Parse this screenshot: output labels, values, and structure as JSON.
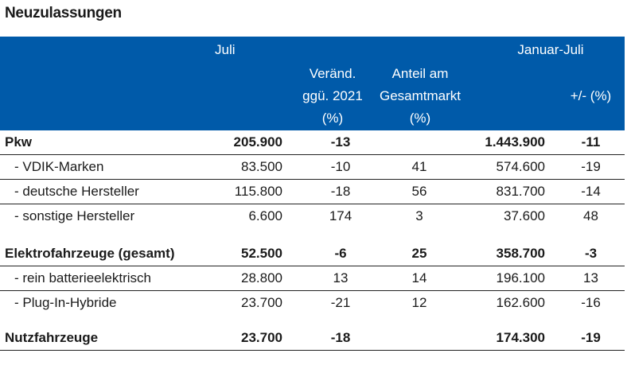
{
  "title": "Neuzulassungen",
  "header": {
    "juli": "Juli",
    "januar_juli": "Januar-Juli",
    "veraend": [
      "Veränd.",
      "ggü. 2021",
      "(%)"
    ],
    "anteil": [
      "Anteil am",
      "Gesamtmarkt",
      "(%)"
    ],
    "plusminus": "+/- (%)"
  },
  "rows": [
    {
      "label": "Pkw",
      "juli": "205.900",
      "ver": "-13",
      "ant": "",
      "jan": "1.443.900",
      "pm": "-11"
    },
    {
      "label": "- VDIK-Marken",
      "juli": "83.500",
      "ver": "-10",
      "ant": "41",
      "jan": "574.600",
      "pm": "-19"
    },
    {
      "label": "- deutsche Hersteller",
      "juli": "115.800",
      "ver": "-18",
      "ant": "56",
      "jan": "831.700",
      "pm": "-14"
    },
    {
      "label": "- sonstige Hersteller",
      "juli": "6.600",
      "ver": "174",
      "ant": "3",
      "jan": "37.600",
      "pm": "48"
    },
    {
      "label": "Elektrofahrzeuge (gesamt)",
      "juli": "52.500",
      "ver": "-6",
      "ant": "25",
      "jan": "358.700",
      "pm": "-3"
    },
    {
      "label": "- rein batterieelektrisch",
      "juli": "28.800",
      "ver": "13",
      "ant": "14",
      "jan": "196.100",
      "pm": "13"
    },
    {
      "label": "- Plug-In-Hybride",
      "juli": "23.700",
      "ver": "-21",
      "ant": "12",
      "jan": "162.600",
      "pm": "-16"
    },
    {
      "label": "Nutzfahrzeuge",
      "juli": "23.700",
      "ver": "-18",
      "ant": "",
      "jan": "174.300",
      "pm": "-19"
    }
  ]
}
